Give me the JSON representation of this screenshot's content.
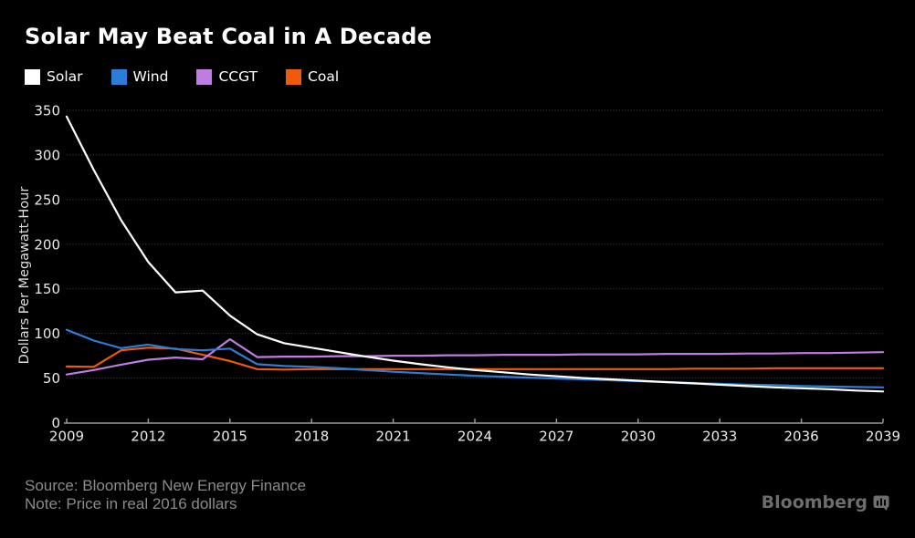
{
  "title": "Solar May Beat Coal in A Decade",
  "y_axis_title": "Dollars Per Megawatt-Hour",
  "footer": {
    "source": "Source: Bloomberg New Energy Finance",
    "note": "Note: Price in real 2016 dollars",
    "logo_text": "Bloomberg",
    "logo_icon": "bloomberg-terminal-icon"
  },
  "colors": {
    "background": "#000000",
    "title_text": "#ffffff",
    "tick_text": "#e9e9e9",
    "gridline": "#474747",
    "axis": "#999999",
    "footer_text": "#8b8b8b",
    "logo": "#6d6d6d",
    "solar": "#ffffff",
    "wind": "#2b7dd8",
    "ccgt": "#c07ce0",
    "coal": "#ef5a0c"
  },
  "chart_data": {
    "type": "line",
    "title": "Solar May Beat Coal in A Decade",
    "xlabel": "",
    "ylabel": "Dollars Per Megawatt-Hour",
    "ylim": [
      0,
      350
    ],
    "y_ticks": [
      0,
      50,
      100,
      150,
      200,
      250,
      300,
      350
    ],
    "x_ticks": [
      2009,
      2012,
      2015,
      2018,
      2021,
      2024,
      2027,
      2030,
      2033,
      2036,
      2039
    ],
    "grid": "horizontal-dotted",
    "legend_position": "top-left",
    "x": [
      2009,
      2010,
      2011,
      2012,
      2013,
      2014,
      2015,
      2016,
      2017,
      2018,
      2019,
      2020,
      2021,
      2022,
      2023,
      2024,
      2025,
      2026,
      2027,
      2028,
      2029,
      2030,
      2031,
      2032,
      2033,
      2034,
      2035,
      2036,
      2037,
      2038,
      2039
    ],
    "series": [
      {
        "name": "Solar",
        "color": "#ffffff",
        "values": [
          343,
          283,
          227,
          180,
          146,
          148,
          120,
          99,
          89,
          84,
          79,
          74,
          69.5,
          65.5,
          62,
          59,
          56.5,
          54,
          52,
          50,
          48.5,
          47,
          45.5,
          44,
          42.5,
          41,
          39.5,
          38.5,
          37.5,
          36,
          35
        ]
      },
      {
        "name": "Wind",
        "color": "#2b7dd8",
        "values": [
          104,
          92,
          83.5,
          87.5,
          82.5,
          81,
          83,
          65.5,
          63.5,
          62.5,
          61,
          59,
          57,
          55.5,
          54,
          52.5,
          51.5,
          50.5,
          49.5,
          48.5,
          47.5,
          46.5,
          45.5,
          44.5,
          43.5,
          42.5,
          42,
          41,
          40.5,
          40,
          39.5
        ]
      },
      {
        "name": "CCGT",
        "color": "#c07ce0",
        "values": [
          54,
          59,
          65,
          70.5,
          73,
          71,
          93.5,
          73.5,
          74,
          74,
          74.5,
          74.5,
          75,
          75,
          75.5,
          75.5,
          76,
          76,
          76,
          76.5,
          76.5,
          76.5,
          77,
          77,
          77,
          77.5,
          77.5,
          78,
          78,
          78.5,
          79
        ]
      },
      {
        "name": "Coal",
        "color": "#ef5a0c",
        "values": [
          63,
          62.5,
          81,
          84,
          83,
          76,
          69,
          60,
          59.5,
          60,
          60,
          60,
          60,
          60,
          60,
          60,
          60,
          60,
          60,
          60,
          60,
          60,
          60,
          60.5,
          60.5,
          60.5,
          61,
          61,
          61,
          61,
          61
        ]
      }
    ]
  }
}
